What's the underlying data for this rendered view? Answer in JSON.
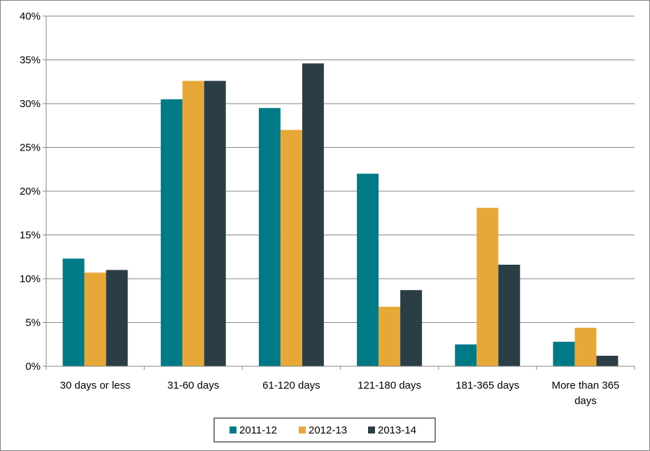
{
  "chart_data": {
    "type": "bar",
    "categories": [
      [
        "30 days or less"
      ],
      [
        "31-60 days"
      ],
      [
        "61-120 days"
      ],
      [
        "121-180 days"
      ],
      [
        "181-365 days"
      ],
      [
        "More than 365",
        "days"
      ]
    ],
    "series": [
      {
        "name": "2011-12",
        "color": "#007A87",
        "values": [
          12.3,
          30.5,
          29.5,
          22.0,
          2.5,
          2.8
        ]
      },
      {
        "name": "2012-13",
        "color": "#E8A838",
        "values": [
          10.7,
          32.6,
          27.0,
          6.8,
          18.1,
          4.4
        ]
      },
      {
        "name": "2013-14",
        "color": "#2B3E45",
        "values": [
          11.0,
          32.6,
          34.6,
          8.7,
          11.6,
          1.2
        ]
      }
    ],
    "ylim": [
      0,
      40
    ],
    "yticks": [
      "0%",
      "5%",
      "10%",
      "15%",
      "20%",
      "25%",
      "30%",
      "35%",
      "40%"
    ],
    "grid": true,
    "legend_position": "bottom"
  }
}
